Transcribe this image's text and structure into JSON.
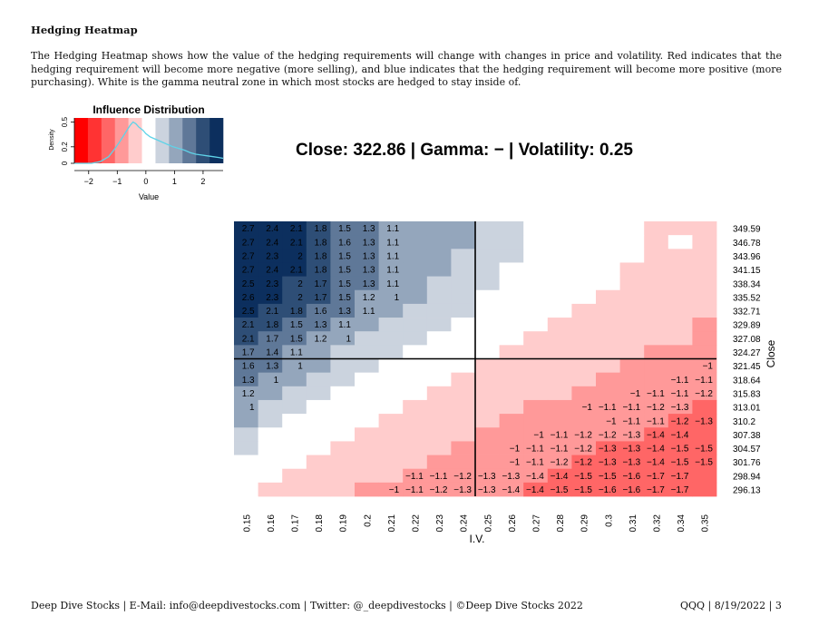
{
  "heading": "Hedging Heatmap",
  "paragraph": "The Hedging Heatmap shows how the value of the hedging requirements will change with changes in price and volatility. Red indicates that the hedging requirement will become more negative (more selling), and blue indicates that the hedging requirement will become more positive (more purchasing). White is the gamma neutral zone in which most stocks are hedged to stay inside of.",
  "footer": {
    "left": "Deep Dive Stocks | E-Mail:  info@deepdivestocks.com | Twitter:  @_deepdivestocks | ©Deep Dive Stocks 2022",
    "right": "QQQ | 8/19/2022 | 3"
  },
  "colors": {
    "blue_scale": [
      "#cbd3de",
      "#94a6bc",
      "#5f7898",
      "#2e4e76",
      "#0c2f5e"
    ],
    "red_scale": [
      "#ffffff",
      "#ffcccc",
      "#ff9999",
      "#ff6666",
      "#ff3333",
      "#ff0000"
    ],
    "density_line": "#5fd3e8"
  },
  "chart_data": [
    {
      "type": "area",
      "title": "Influence Distribution",
      "xlabel": "Value",
      "ylabel": "Density",
      "x_ticks": [
        "−2",
        "−1",
        "0",
        "1",
        "2"
      ],
      "y_ticks": [
        "0",
        "0.2",
        "0.5"
      ],
      "xlim": [
        -2.5,
        2.7
      ],
      "ylim": [
        0,
        0.55
      ],
      "density_x": [
        -2.5,
        -1.9,
        -1.6,
        -1.3,
        -1.1,
        -0.9,
        -0.7,
        -0.55,
        -0.45,
        -0.35,
        -0.25,
        -0.1,
        0.0,
        0.15,
        0.35,
        0.55,
        0.75,
        0.95,
        1.15,
        1.35,
        1.55,
        1.75,
        1.95,
        2.15,
        2.35,
        2.55,
        2.7
      ],
      "density_y": [
        0.0,
        0.0,
        0.02,
        0.08,
        0.17,
        0.27,
        0.38,
        0.46,
        0.5,
        0.48,
        0.44,
        0.4,
        0.36,
        0.32,
        0.29,
        0.26,
        0.23,
        0.2,
        0.18,
        0.16,
        0.13,
        0.11,
        0.1,
        0.09,
        0.08,
        0.07,
        0.06
      ]
    },
    {
      "type": "heatmap",
      "title": "Close: 322.86 | Gamma: − | Volatility: 0.25",
      "xlabel": "I.V.",
      "ylabel": "Close",
      "x": [
        "0.15",
        "0.16",
        "0.17",
        "0.18",
        "0.19",
        "0.2",
        "0.21",
        "0.22",
        "0.23",
        "0.24",
        "0.25",
        "0.26",
        "0.27",
        "0.28",
        "0.29",
        "0.3",
        "0.31",
        "0.32",
        "0.34",
        "0.35"
      ],
      "y": [
        "349.59",
        "346.78",
        "343.96",
        "341.15",
        "338.34",
        "335.52",
        "332.71",
        "329.89",
        "327.08",
        "324.27",
        "321.45",
        "318.64",
        "315.83",
        "313.01",
        "310.2",
        "307.38",
        "304.57",
        "301.76",
        "298.94",
        "296.13"
      ],
      "current_iv": "0.25",
      "current_close": "322.86",
      "cells": [
        [
          "2.7",
          "2.4",
          "2.1",
          "1.8",
          "1.5",
          "1.3",
          "1.1",
          "",
          "",
          "",
          "",
          "",
          "",
          "",
          "",
          "",
          "",
          "",
          "",
          ""
        ],
        [
          "2.7",
          "2.4",
          "2.1",
          "1.8",
          "1.6",
          "1.3",
          "1.1",
          "",
          "",
          "",
          "",
          "",
          "",
          "",
          "",
          "",
          "",
          "",
          "",
          ""
        ],
        [
          "2.7",
          "2.3",
          "2",
          "1.8",
          "1.5",
          "1.3",
          "1.1",
          "",
          "",
          "",
          "",
          "",
          "",
          "",
          "",
          "",
          "",
          "",
          "",
          ""
        ],
        [
          "2.7",
          "2.4",
          "2.1",
          "1.8",
          "1.5",
          "1.3",
          "1.1",
          "",
          "",
          "",
          "",
          "",
          "",
          "",
          "",
          "",
          "",
          "",
          "",
          ""
        ],
        [
          "2.5",
          "2.3",
          "2",
          "1.7",
          "1.5",
          "1.3",
          "1.1",
          "",
          "",
          "",
          "",
          "",
          "",
          "",
          "",
          "",
          "",
          "",
          "",
          ""
        ],
        [
          "2.6",
          "2.3",
          "2",
          "1.7",
          "1.5",
          "1.2",
          "1",
          "",
          "",
          "",
          "",
          "",
          "",
          "",
          "",
          "",
          "",
          "",
          "",
          ""
        ],
        [
          "2.5",
          "2.1",
          "1.8",
          "1.6",
          "1.3",
          "1.1",
          "",
          "",
          "",
          "",
          "",
          "",
          "",
          "",
          "",
          "",
          "",
          "",
          "",
          ""
        ],
        [
          "2.1",
          "1.8",
          "1.5",
          "1.3",
          "1.1",
          "",
          "",
          "",
          "",
          "",
          "",
          "",
          "",
          "",
          "",
          "",
          "",
          "",
          "",
          ""
        ],
        [
          "2.1",
          "1.7",
          "1.5",
          "1.2",
          "1",
          "",
          "",
          "",
          "",
          "",
          "",
          "",
          "",
          "",
          "",
          "",
          "",
          "",
          "",
          ""
        ],
        [
          "1.7",
          "1.4",
          "1.1",
          "",
          "",
          "",
          "",
          "",
          "",
          "",
          "",
          "",
          "",
          "",
          "",
          "",
          "",
          "",
          "",
          ""
        ],
        [
          "1.6",
          "1.3",
          "1",
          "",
          "",
          "",
          "",
          "",
          "",
          "",
          "",
          "",
          "",
          "",
          "",
          "",
          "",
          "",
          "",
          "−1"
        ],
        [
          "1.3",
          "1",
          "",
          "",
          "",
          "",
          "",
          "",
          "",
          "",
          "",
          "",
          "",
          "",
          "",
          "",
          "",
          "",
          "−1.1",
          "−1.1"
        ],
        [
          "1.2",
          "",
          "",
          "",
          "",
          "",
          "",
          "",
          "",
          "",
          "",
          "",
          "",
          "",
          "",
          "",
          "−1",
          "−1.1",
          "−1.1",
          "−1.2"
        ],
        [
          "1",
          "",
          "",
          "",
          "",
          "",
          "",
          "",
          "",
          "",
          "",
          "",
          "",
          "",
          "−1",
          "−1.1",
          "−1.1",
          "−1.2",
          "−1.3",
          ""
        ],
        [
          "",
          "",
          "",
          "",
          "",
          "",
          "",
          "",
          "",
          "",
          "",
          "",
          "",
          "",
          "",
          "−1",
          "−1.1",
          "−1.1",
          "−1.2",
          "−1.3"
        ],
        [
          "",
          "",
          "",
          "",
          "",
          "",
          "",
          "",
          "",
          "",
          "",
          "",
          "−1",
          "−1.1",
          "−1.2",
          "−1.2",
          "−1.3",
          "−1.4",
          "−1.4",
          ""
        ],
        [
          "",
          "",
          "",
          "",
          "",
          "",
          "",
          "",
          "",
          "",
          "",
          "−1",
          "−1.1",
          "−1.1",
          "−1.2",
          "−1.3",
          "−1.3",
          "−1.4",
          "−1.5",
          "−1.5"
        ],
        [
          "",
          "",
          "",
          "",
          "",
          "",
          "",
          "",
          "",
          "",
          "",
          "−1",
          "−1.1",
          "−1.2",
          "−1.2",
          "−1.3",
          "−1.3",
          "−1.4",
          "−1.5",
          "−1.5"
        ],
        [
          "",
          "",
          "",
          "",
          "",
          "",
          "",
          "−1.1",
          "−1.1",
          "−1.2",
          "−1.3",
          "−1.3",
          "−1.4",
          "−1.4",
          "−1.5",
          "−1.5",
          "−1.6",
          "−1.7",
          "−1.7",
          ""
        ],
        [
          "",
          "",
          "",
          "",
          "",
          "",
          "−1",
          "−1.1",
          "−1.2",
          "−1.3",
          "−1.3",
          "−1.4",
          "−1.4",
          "−1.5",
          "−1.5",
          "−1.6",
          "−1.6",
          "−1.7",
          "−1.7",
          ""
        ]
      ],
      "levels": [
        [
          5,
          5,
          5,
          4,
          3,
          3,
          2,
          2,
          2,
          2,
          1,
          1,
          0,
          0,
          0,
          0,
          0,
          -1,
          -1,
          -1
        ],
        [
          5,
          5,
          5,
          4,
          3,
          3,
          2,
          2,
          2,
          2,
          1,
          1,
          0,
          0,
          0,
          0,
          0,
          -1,
          0,
          -1
        ],
        [
          5,
          5,
          5,
          4,
          3,
          3,
          2,
          2,
          2,
          1,
          1,
          1,
          0,
          0,
          0,
          0,
          0,
          -1,
          -1,
          -1
        ],
        [
          5,
          5,
          5,
          4,
          3,
          3,
          2,
          2,
          2,
          1,
          1,
          0,
          0,
          0,
          0,
          0,
          -1,
          -1,
          -1,
          -1
        ],
        [
          5,
          5,
          4,
          4,
          3,
          3,
          2,
          2,
          1,
          1,
          1,
          0,
          0,
          0,
          0,
          0,
          -1,
          -1,
          -1,
          -1
        ],
        [
          5,
          5,
          4,
          4,
          3,
          2,
          2,
          2,
          1,
          1,
          0,
          0,
          0,
          0,
          0,
          -1,
          -1,
          -1,
          -1,
          -1
        ],
        [
          5,
          4,
          4,
          3,
          3,
          2,
          2,
          1,
          1,
          1,
          0,
          0,
          0,
          0,
          -1,
          -1,
          -1,
          -1,
          -1,
          -1
        ],
        [
          4,
          4,
          3,
          3,
          2,
          2,
          1,
          1,
          1,
          0,
          0,
          0,
          0,
          -1,
          -1,
          -1,
          -1,
          -1,
          -1,
          -2
        ],
        [
          4,
          3,
          3,
          2,
          2,
          1,
          1,
          1,
          0,
          0,
          0,
          0,
          -1,
          -1,
          -1,
          -1,
          -1,
          -1,
          -1,
          -2
        ],
        [
          3,
          3,
          2,
          2,
          1,
          1,
          1,
          0,
          0,
          0,
          0,
          -1,
          -1,
          -1,
          -1,
          -1,
          -1,
          -2,
          -2,
          -2
        ],
        [
          3,
          3,
          2,
          2,
          1,
          1,
          0,
          0,
          0,
          0,
          -1,
          -1,
          -1,
          -1,
          -1,
          -1,
          -2,
          -2,
          -2,
          -2
        ],
        [
          3,
          2,
          2,
          1,
          1,
          0,
          0,
          0,
          0,
          -1,
          -1,
          -1,
          -1,
          -1,
          -1,
          -2,
          -2,
          -2,
          -2,
          -2
        ],
        [
          2,
          2,
          1,
          1,
          0,
          0,
          0,
          0,
          -1,
          -1,
          -1,
          -1,
          -1,
          -1,
          -2,
          -2,
          -2,
          -2,
          -2,
          -2
        ],
        [
          2,
          1,
          1,
          0,
          0,
          0,
          0,
          -1,
          -1,
          -1,
          -1,
          -1,
          -2,
          -2,
          -2,
          -2,
          -2,
          -2,
          -2,
          -3
        ],
        [
          2,
          1,
          0,
          0,
          0,
          0,
          -1,
          -1,
          -1,
          -1,
          -1,
          -2,
          -2,
          -2,
          -2,
          -2,
          -2,
          -2,
          -3,
          -3
        ],
        [
          1,
          0,
          0,
          0,
          0,
          -1,
          -1,
          -1,
          -1,
          -1,
          -2,
          -2,
          -2,
          -2,
          -2,
          -2,
          -2,
          -3,
          -3,
          -3
        ],
        [
          1,
          0,
          0,
          0,
          -1,
          -1,
          -1,
          -1,
          -1,
          -2,
          -2,
          -2,
          -2,
          -2,
          -2,
          -3,
          -3,
          -3,
          -3,
          -3
        ],
        [
          0,
          0,
          0,
          -1,
          -1,
          -1,
          -1,
          -1,
          -2,
          -2,
          -2,
          -2,
          -2,
          -2,
          -3,
          -3,
          -3,
          -3,
          -3,
          -3
        ],
        [
          0,
          0,
          -1,
          -1,
          -1,
          -1,
          -1,
          -2,
          -2,
          -2,
          -2,
          -2,
          -2,
          -3,
          -3,
          -3,
          -3,
          -3,
          -3,
          -3
        ],
        [
          0,
          -1,
          -1,
          -1,
          -1,
          -2,
          -2,
          -2,
          -2,
          -2,
          -2,
          -2,
          -3,
          -3,
          -3,
          -3,
          -3,
          -3,
          -3,
          -3
        ]
      ]
    }
  ]
}
